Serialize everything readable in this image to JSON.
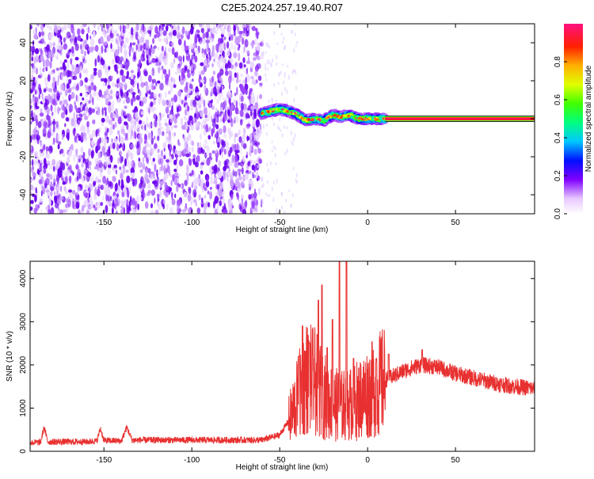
{
  "title": "C2E5.2024.257.19.40.R07",
  "chart_data": [
    {
      "type": "heatmap",
      "xlabel": "Height of straight line (km)",
      "ylabel": "Frequency (Hz)",
      "xlim": [
        -192,
        95
      ],
      "ylim": [
        -50,
        50
      ],
      "xticks": [
        -150,
        -100,
        -50,
        0,
        50
      ],
      "yticks": [
        -40,
        -20,
        0,
        20,
        40
      ],
      "colorbar": {
        "label": "Normalized spectral amplitude",
        "range": [
          0,
          1
        ],
        "ticks": [
          0.0,
          0.2,
          0.4,
          0.6,
          0.8
        ]
      },
      "noise_region_x": [
        -192,
        -60
      ],
      "track": [
        {
          "x": -60,
          "y": 3
        },
        {
          "x": -55,
          "y": 4
        },
        {
          "x": -50,
          "y": 5
        },
        {
          "x": -45,
          "y": 4
        },
        {
          "x": -40,
          "y": 2
        },
        {
          "x": -35,
          "y": -1
        },
        {
          "x": -30,
          "y": 0
        },
        {
          "x": -25,
          "y": -1
        },
        {
          "x": -20,
          "y": 2
        },
        {
          "x": -15,
          "y": 1
        },
        {
          "x": -10,
          "y": 2
        },
        {
          "x": -5,
          "y": 0
        },
        {
          "x": 0,
          "y": 0
        },
        {
          "x": 5,
          "y": 0
        },
        {
          "x": 10,
          "y": 0
        }
      ],
      "constant_line": {
        "x_start": 10,
        "x_end": 95,
        "y": 0,
        "amplitude": 0.95
      }
    },
    {
      "type": "line",
      "xlabel": "Height of straight line (km)",
      "ylabel": "SNR (10 * v/v)",
      "xlim": [
        -192,
        95
      ],
      "ylim": [
        0,
        4400
      ],
      "xticks": [
        -150,
        -100,
        -50,
        0,
        50
      ],
      "yticks": [
        0,
        1000,
        2000,
        3000,
        4000
      ],
      "series": [
        {
          "color": "#e83030",
          "envelope": [
            {
              "x": -192,
              "y": 200
            },
            {
              "x": -186,
              "y": 210
            },
            {
              "x": -184,
              "y": 560
            },
            {
              "x": -182,
              "y": 220
            },
            {
              "x": -160,
              "y": 220
            },
            {
              "x": -154,
              "y": 240
            },
            {
              "x": -152,
              "y": 530
            },
            {
              "x": -150,
              "y": 250
            },
            {
              "x": -140,
              "y": 240
            },
            {
              "x": -137,
              "y": 560
            },
            {
              "x": -134,
              "y": 260
            },
            {
              "x": -100,
              "y": 260
            },
            {
              "x": -60,
              "y": 260
            },
            {
              "x": -50,
              "y": 380
            },
            {
              "x": -45,
              "y": 700
            },
            {
              "x": -40,
              "y": 1200
            },
            {
              "x": -35,
              "y": 1700
            },
            {
              "x": -30,
              "y": 1600
            },
            {
              "x": -25,
              "y": 1300
            },
            {
              "x": -20,
              "y": 1100
            },
            {
              "x": -15,
              "y": 1050
            },
            {
              "x": -10,
              "y": 1100
            },
            {
              "x": -5,
              "y": 1200
            },
            {
              "x": 0,
              "y": 1350
            },
            {
              "x": 10,
              "y": 1650
            },
            {
              "x": 20,
              "y": 1850
            },
            {
              "x": 30,
              "y": 2000
            },
            {
              "x": 40,
              "y": 1950
            },
            {
              "x": 50,
              "y": 1800
            },
            {
              "x": 60,
              "y": 1700
            },
            {
              "x": 70,
              "y": 1600
            },
            {
              "x": 80,
              "y": 1520
            },
            {
              "x": 95,
              "y": 1450
            }
          ],
          "spikes": [
            {
              "x": -39,
              "y": 2200
            },
            {
              "x": -37,
              "y": 2900
            },
            {
              "x": -33,
              "y": 2500
            },
            {
              "x": -28,
              "y": 3500
            },
            {
              "x": -26,
              "y": 3850
            },
            {
              "x": -23,
              "y": 2400
            },
            {
              "x": -20,
              "y": 3050
            },
            {
              "x": -16,
              "y": 4400
            },
            {
              "x": -12,
              "y": 4400
            },
            {
              "x": -8,
              "y": 2150
            },
            {
              "x": 5,
              "y": 2150
            },
            {
              "x": 12,
              "y": 2250
            },
            {
              "x": 31,
              "y": 2350
            }
          ]
        }
      ]
    }
  ]
}
